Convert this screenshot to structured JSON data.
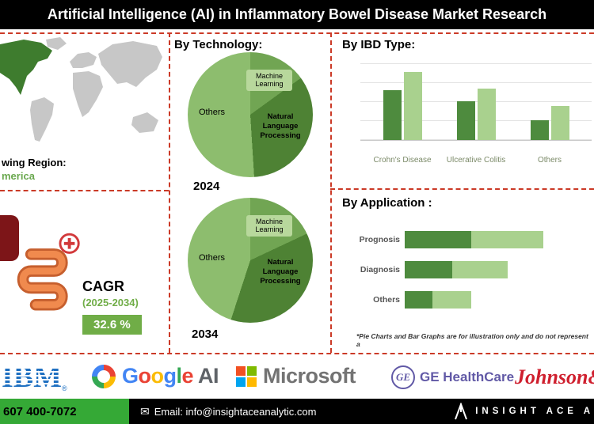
{
  "colors": {
    "banner_black": "#000000",
    "dash_red": "#cb3a27",
    "accent_green": "#70ad47",
    "dark_green": "#4e8b3e",
    "light_green": "#a9d18e",
    "footer_green": "#35a936",
    "region_green": "#6aa84f"
  },
  "header": {
    "title": "Artificial Intelligence (AI) in Inflammatory Bowel Disease Market Research"
  },
  "region": {
    "label": "wing Region:",
    "value": "merica"
  },
  "cagr": {
    "label": "CAGR",
    "period": "(2025-2034)",
    "value": "32.6 %"
  },
  "technology": {
    "title": "By Technology:",
    "years": [
      "2024",
      "2034"
    ]
  },
  "ibd": {
    "title": "By IBD Type:"
  },
  "application": {
    "title": "By Application :"
  },
  "disclaimer": "*Pie Charts and Bar Graphs are for illustration only and do not represent a",
  "companies": {
    "ibm": {
      "text": "IBM",
      "reg": "®"
    },
    "google": {
      "letters": [
        "G",
        "o",
        "o",
        "g",
        "l",
        "e"
      ],
      "letter_colors": [
        "#4285F4",
        "#EA4335",
        "#FBBC05",
        "#4285F4",
        "#34A853",
        "#EA4335"
      ],
      "suffix": " AI",
      "suffix_color": "#5f6368"
    },
    "microsoft": {
      "text": "Microsoft",
      "square_colors": [
        "#F25022",
        "#7FBA00",
        "#00A4EF",
        "#FFB900"
      ]
    },
    "ge": {
      "monogram": "GE",
      "text": "GE HealthCare"
    },
    "jnj": {
      "text": "Johnson&"
    }
  },
  "footer": {
    "phone": "607 400-7072",
    "email": "Email: info@insightaceanalytic.com",
    "brand": "INSIGHT ACE A"
  },
  "chart_data": [
    {
      "type": "pie",
      "title": "By Technology:",
      "year": "2024",
      "labels": [
        "Machine Learning",
        "Natural Language Processing",
        "Others"
      ],
      "values": [
        15,
        34,
        51
      ],
      "colors": [
        "#71a553",
        "#4e8234",
        "#8dbd6e"
      ]
    },
    {
      "type": "pie",
      "title": "By Technology:",
      "year": "2034",
      "labels": [
        "Machine Learning",
        "Natural Language Processing",
        "Others"
      ],
      "values": [
        18,
        37,
        45
      ],
      "colors": [
        "#71a553",
        "#4e8234",
        "#8dbd6e"
      ]
    },
    {
      "type": "bar",
      "title": "By IBD Type:",
      "categories": [
        "Crohn's Disease",
        "Ulcerative Colitis",
        "Others"
      ],
      "series": [
        {
          "name": "dark",
          "color": "#4e8b3e",
          "values": [
            64,
            50,
            26
          ]
        },
        {
          "name": "light",
          "color": "#a9d18e",
          "values": [
            88,
            66,
            44
          ]
        }
      ],
      "ylim": [
        0,
        100
      ],
      "grid": true,
      "legend": "none"
    },
    {
      "type": "bar",
      "orientation": "horizontal-stacked",
      "title": "By Application :",
      "categories": [
        "Prognosis",
        "Diagnosis",
        "Others"
      ],
      "series": [
        {
          "name": "dark",
          "color": "#4e8b3e",
          "values": [
            48,
            34,
            20
          ]
        },
        {
          "name": "light",
          "color": "#a9d18e",
          "values": [
            52,
            40,
            28
          ]
        }
      ],
      "xlim": [
        0,
        100
      ],
      "grid": false,
      "legend": "none"
    }
  ]
}
